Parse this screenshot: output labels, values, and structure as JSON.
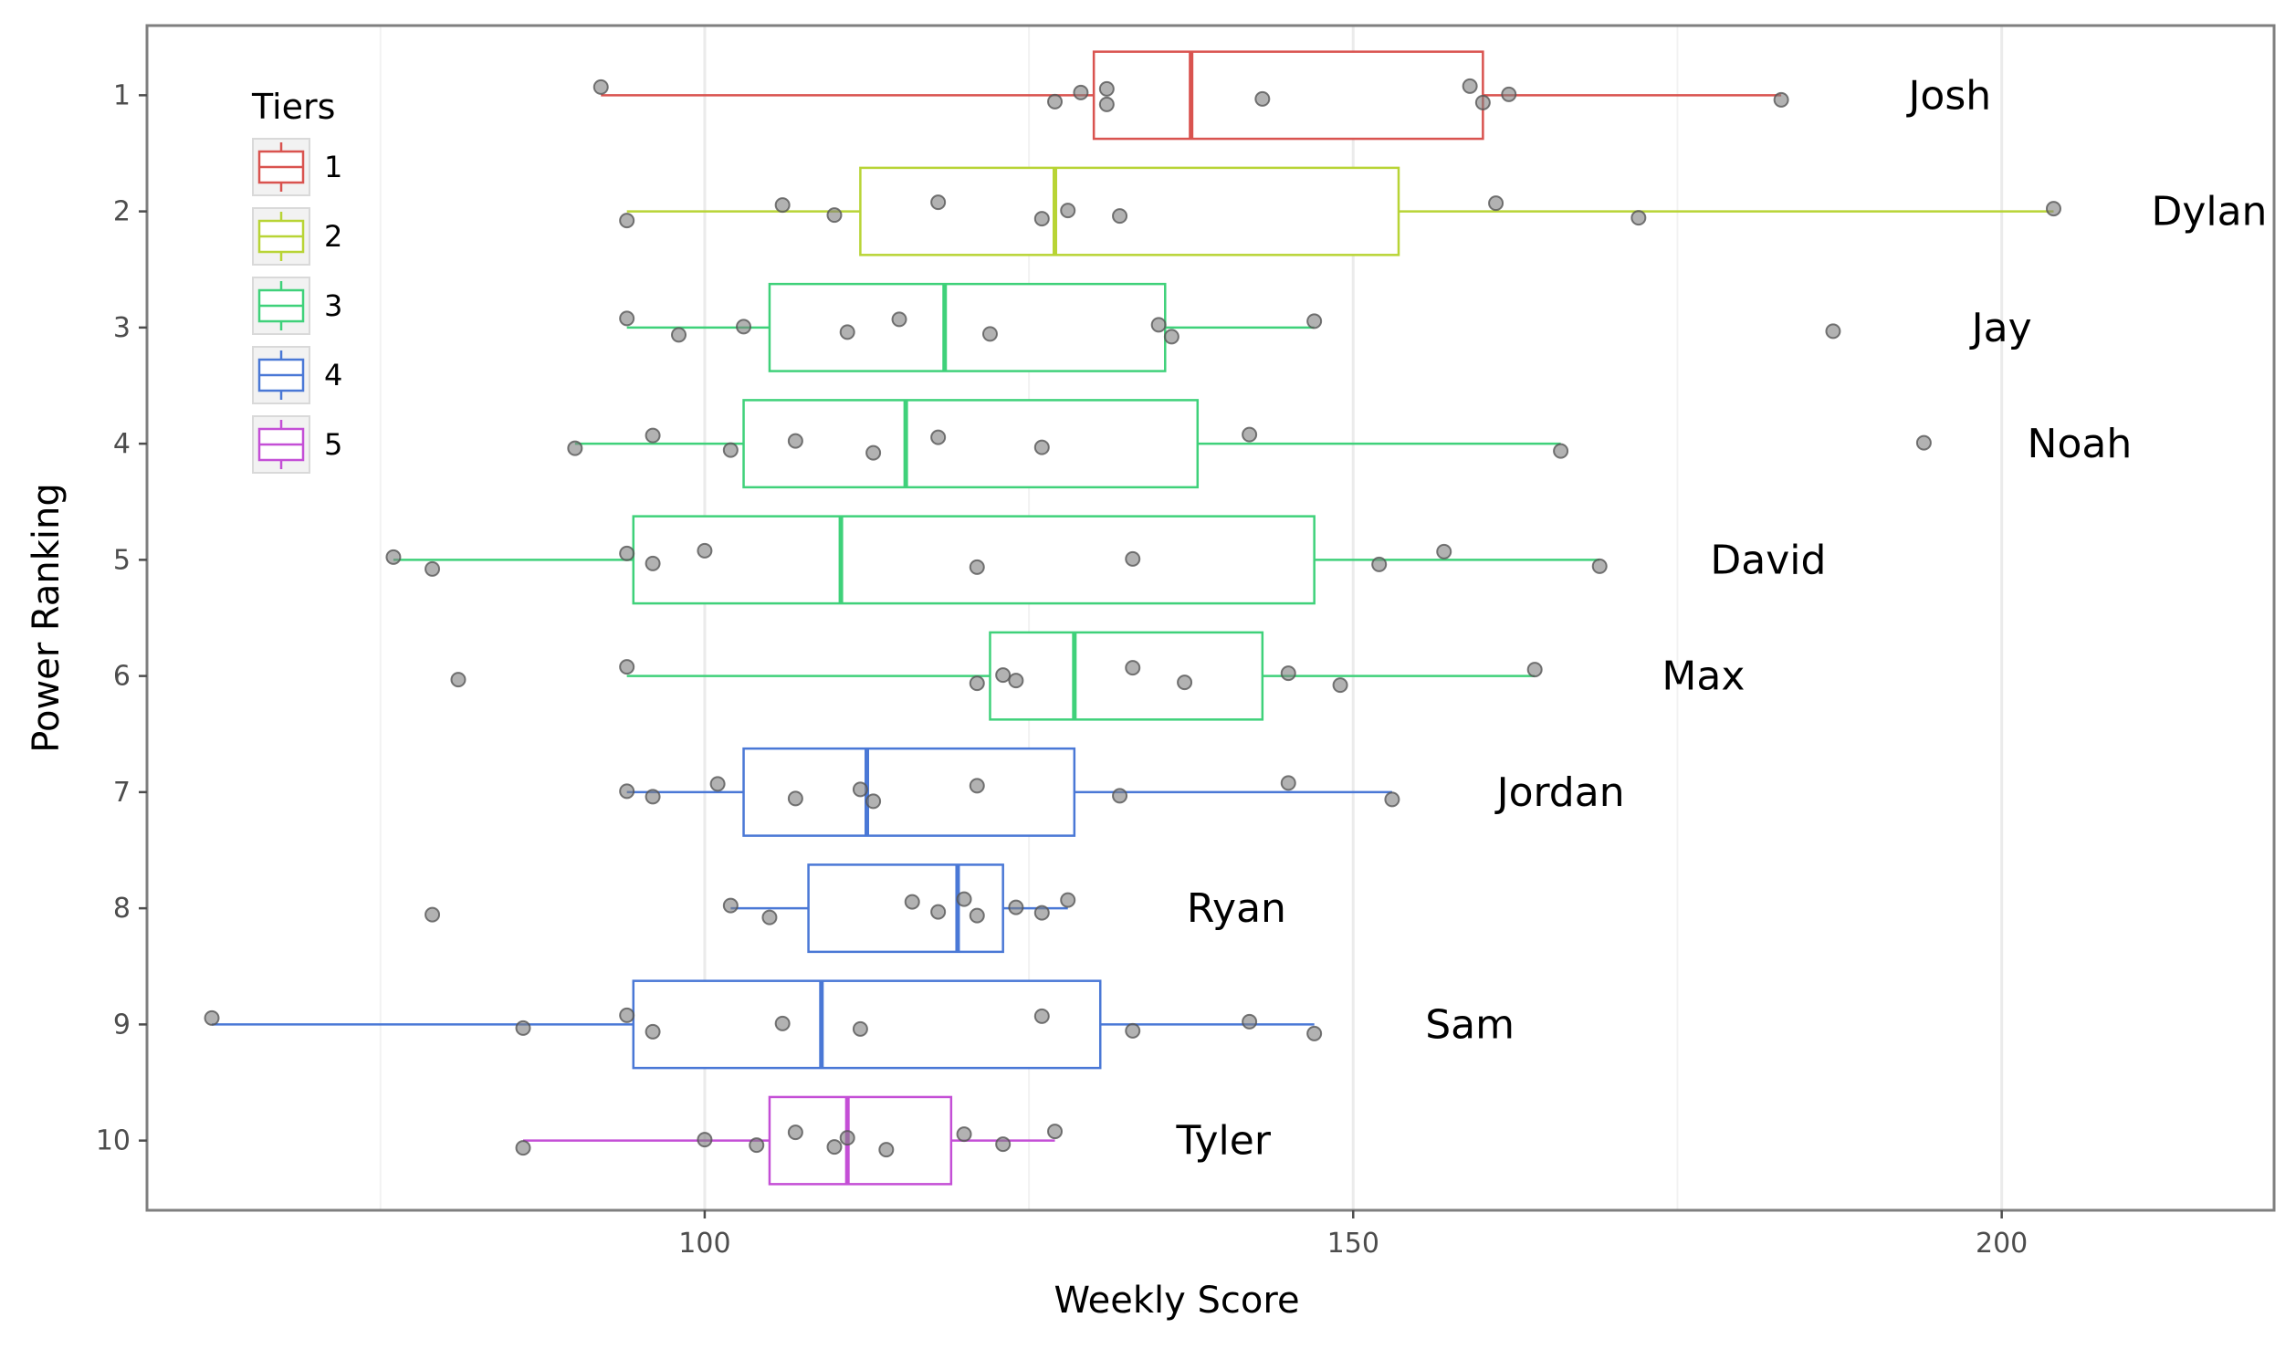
{
  "chart_data": {
    "type": "boxplot",
    "title": "",
    "xlabel": "Weekly Score",
    "ylabel": "Power Ranking",
    "xlim": [
      57,
      221
    ],
    "x_ticks": [
      100,
      150,
      200
    ],
    "y_categories": [
      "1",
      "2",
      "3",
      "4",
      "5",
      "6",
      "7",
      "8",
      "9",
      "10"
    ],
    "grid": true,
    "legend": {
      "title": "Tiers",
      "position": "top-left",
      "entries": [
        {
          "label": "1",
          "color": "#d9534f"
        },
        {
          "label": "2",
          "color": "#b8d435"
        },
        {
          "label": "3",
          "color": "#3fd17a"
        },
        {
          "label": "4",
          "color": "#4a78d6"
        },
        {
          "label": "5",
          "color": "#c44fd6"
        }
      ]
    },
    "colors": {
      "points": "#7f7f7f",
      "grid": "#ebebeb",
      "panel_border": "#7f7f7f"
    },
    "series": [
      {
        "rank": "1",
        "name": "Josh",
        "tier": "1",
        "whisker_low": 92,
        "q1": 130,
        "median": 137.5,
        "q3": 160,
        "whisker_high": 183,
        "label_x": 196,
        "points": [
          92,
          127,
          129,
          131,
          131,
          143,
          159,
          160,
          162,
          183
        ]
      },
      {
        "rank": "2",
        "name": "Dylan",
        "tier": "2",
        "whisker_low": 94,
        "q1": 112,
        "median": 127,
        "q3": 153.5,
        "whisker_high": 204,
        "label_x": 216,
        "points": [
          94,
          106,
          110,
          118,
          126,
          128,
          132,
          161,
          172,
          204
        ]
      },
      {
        "rank": "3",
        "name": "Jay",
        "tier": "3",
        "whisker_low": 94,
        "q1": 105,
        "median": 118.5,
        "q3": 135.5,
        "whisker_high": 147,
        "label_x": 200,
        "points": [
          94,
          98,
          103,
          111,
          115,
          122,
          135,
          136,
          147,
          187
        ]
      },
      {
        "rank": "4",
        "name": "Noah",
        "tier": "3",
        "whisker_low": 90,
        "q1": 103,
        "median": 115.5,
        "q3": 138,
        "whisker_high": 166,
        "label_x": 206,
        "points": [
          90,
          96,
          102,
          107,
          113,
          118,
          126,
          142,
          166,
          194
        ]
      },
      {
        "rank": "5",
        "name": "David",
        "tier": "3",
        "whisker_low": 76,
        "q1": 94.5,
        "median": 110.5,
        "q3": 147,
        "whisker_high": 169,
        "label_x": 182,
        "points": [
          76,
          79,
          94,
          96,
          100,
          121,
          133,
          152,
          157,
          169
        ]
      },
      {
        "rank": "6",
        "name": "Max",
        "tier": "3",
        "whisker_low": 94,
        "q1": 122,
        "median": 128.5,
        "q3": 143,
        "whisker_high": 164,
        "label_x": 177,
        "points": [
          81,
          94,
          121,
          123,
          124,
          133,
          137,
          145,
          149,
          164
        ]
      },
      {
        "rank": "7",
        "name": "Jordan",
        "tier": "4",
        "whisker_low": 94,
        "q1": 103,
        "median": 112.5,
        "q3": 128.5,
        "whisker_high": 153,
        "label_x": 166,
        "points": [
          94,
          96,
          101,
          107,
          112,
          113,
          121,
          132,
          145,
          153
        ]
      },
      {
        "rank": "8",
        "name": "Ryan",
        "tier": "4",
        "whisker_low": 102,
        "q1": 108,
        "median": 119.5,
        "q3": 123,
        "whisker_high": 128,
        "label_x": 141,
        "points": [
          79,
          102,
          105,
          116,
          118,
          120,
          121,
          124,
          126,
          128
        ]
      },
      {
        "rank": "9",
        "name": "Sam",
        "tier": "4",
        "whisker_low": 62,
        "q1": 94.5,
        "median": 109,
        "q3": 130.5,
        "whisker_high": 147,
        "label_x": 159,
        "points": [
          62,
          86,
          94,
          96,
          106,
          112,
          126,
          133,
          142,
          147
        ]
      },
      {
        "rank": "10",
        "name": "Tyler",
        "tier": "5",
        "whisker_low": 86,
        "q1": 105,
        "median": 111,
        "q3": 119,
        "whisker_high": 127,
        "label_x": 140,
        "points": [
          86,
          100,
          104,
          107,
          110,
          111,
          114,
          120,
          123,
          127
        ]
      }
    ]
  }
}
